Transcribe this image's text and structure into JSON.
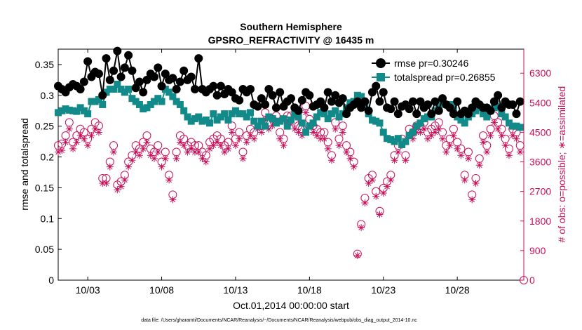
{
  "chart_data": {
    "type": "line",
    "title": "Southern Hemisphere",
    "subtitle": "GPSRO_REFRACTIVITY @ 16435 m",
    "xlabel": "Oct.01,2014 00:00:00 start",
    "ylabel": "rmse and totalspread",
    "y2label": "# of obs: o=possible; ∗=assimilated",
    "footnote": "data file: /Users/gharamti/Documents/NCAR/Reanalysis/~/Documents/NCAR/Reanalysis/webpub/obs_diag_output_2014-10.nc",
    "xlim": [
      1,
      32.5
    ],
    "ylim": [
      0,
      0.375
    ],
    "y2lim": [
      0,
      7031.25
    ],
    "x_ticks": [
      3,
      8,
      13,
      18,
      23,
      28
    ],
    "x_tick_labels": [
      "10/03",
      "10/08",
      "10/13",
      "10/18",
      "10/23",
      "10/28"
    ],
    "y_ticks": [
      0,
      0.05,
      0.1,
      0.15,
      0.2,
      0.25,
      0.3,
      0.35
    ],
    "y_tick_labels": [
      "0",
      "0.05",
      "0.1",
      "0.15",
      "0.2",
      "0.25",
      "0.3",
      "0.35"
    ],
    "y2_ticks": [
      0,
      900,
      1800,
      2700,
      3600,
      4500,
      5400,
      6300
    ],
    "y2_tick_labels": [
      "0",
      "900",
      "1800",
      "2700",
      "3600",
      "4500",
      "5400",
      "6300"
    ],
    "legend": {
      "location": "top-right",
      "entries": [
        "rmse pr=0.30246",
        "totalspread pr=0.26855"
      ]
    },
    "colors": {
      "rmse": "#000000",
      "spread": "#138a8a",
      "obs": "#c8105a"
    },
    "series": [
      {
        "name": "rmse pr=0.30246",
        "x": [
          1.0,
          1.25,
          1.5,
          1.75,
          2.0,
          2.25,
          2.5,
          2.75,
          3.0,
          3.25,
          3.5,
          3.75,
          4.0,
          4.25,
          4.5,
          4.75,
          5.0,
          5.25,
          5.5,
          5.75,
          6.0,
          6.25,
          6.5,
          6.75,
          7.0,
          7.25,
          7.5,
          7.75,
          8.0,
          8.25,
          8.5,
          8.75,
          9.0,
          9.25,
          9.5,
          9.75,
          10.0,
          10.25,
          10.5,
          10.75,
          11.0,
          11.25,
          11.5,
          11.75,
          12.0,
          12.25,
          12.5,
          12.75,
          13.0,
          13.25,
          13.5,
          13.75,
          14.0,
          14.25,
          14.5,
          14.75,
          15.0,
          15.25,
          15.5,
          15.75,
          16.0,
          16.25,
          16.5,
          16.75,
          17.0,
          17.25,
          17.5,
          17.75,
          18.0,
          18.25,
          18.5,
          18.75,
          19.0,
          19.25,
          19.5,
          19.75,
          20.0,
          20.25,
          20.5,
          20.75,
          21.0,
          21.25,
          21.5,
          21.75,
          22.0,
          22.25,
          22.5,
          22.75,
          23.0,
          23.25,
          23.5,
          23.75,
          24.0,
          24.25,
          24.5,
          24.75,
          25.0,
          25.25,
          25.5,
          25.75,
          26.0,
          26.25,
          26.5,
          26.75,
          27.0,
          27.25,
          27.5,
          27.75,
          28.0,
          28.25,
          28.5,
          28.75,
          29.0,
          29.25,
          29.5,
          29.75,
          30.0,
          30.25,
          30.5,
          30.75,
          31.0,
          31.25,
          31.5,
          31.75,
          32.0,
          32.25
        ],
        "values": [
          0.315,
          0.31,
          0.305,
          0.313,
          0.318,
          0.315,
          0.31,
          0.322,
          0.355,
          0.33,
          0.338,
          0.335,
          0.3,
          0.36,
          0.325,
          0.34,
          0.372,
          0.33,
          0.345,
          0.365,
          0.34,
          0.312,
          0.322,
          0.305,
          0.325,
          0.335,
          0.33,
          0.345,
          0.315,
          0.335,
          0.325,
          0.328,
          0.31,
          0.322,
          0.34,
          0.325,
          0.33,
          0.31,
          0.36,
          0.31,
          0.305,
          0.31,
          0.315,
          0.3,
          0.315,
          0.302,
          0.31,
          0.305,
          0.295,
          0.292,
          0.31,
          0.305,
          0.31,
          0.285,
          0.282,
          0.295,
          0.285,
          0.31,
          0.3,
          0.28,
          0.305,
          0.282,
          0.29,
          0.295,
          0.28,
          0.275,
          0.292,
          0.305,
          0.3,
          0.282,
          0.285,
          0.29,
          0.28,
          0.305,
          0.29,
          0.3,
          0.288,
          0.295,
          0.27,
          0.28,
          0.285,
          0.29,
          0.28,
          0.29,
          0.275,
          0.305,
          0.315,
          0.29,
          0.305,
          0.28,
          0.278,
          0.29,
          0.27,
          0.282,
          0.285,
          0.278,
          0.29,
          0.27,
          0.29,
          0.28,
          0.285,
          0.27,
          0.29,
          0.275,
          0.295,
          0.285,
          0.28,
          0.27,
          0.29,
          0.27,
          0.275,
          0.27,
          0.28,
          0.29,
          0.285,
          0.28,
          0.28,
          0.275,
          0.29,
          0.3,
          0.28,
          0.29,
          0.285,
          0.285,
          0.27,
          0.29
        ]
      },
      {
        "name": "totalspread pr=0.26855",
        "x": [
          1.0,
          1.25,
          1.5,
          1.75,
          2.0,
          2.25,
          2.5,
          2.75,
          3.0,
          3.25,
          3.5,
          3.75,
          4.0,
          4.25,
          4.5,
          4.75,
          5.0,
          5.25,
          5.5,
          5.75,
          6.0,
          6.25,
          6.5,
          6.75,
          7.0,
          7.25,
          7.5,
          7.75,
          8.0,
          8.25,
          8.5,
          8.75,
          9.0,
          9.25,
          9.5,
          9.75,
          10.0,
          10.25,
          10.5,
          10.75,
          11.0,
          11.25,
          11.5,
          11.75,
          12.0,
          12.25,
          12.5,
          12.75,
          13.0,
          13.25,
          13.5,
          13.75,
          14.0,
          14.25,
          14.5,
          14.75,
          15.0,
          15.25,
          15.5,
          15.75,
          16.0,
          16.25,
          16.5,
          16.75,
          17.0,
          17.25,
          17.5,
          17.75,
          18.0,
          18.25,
          18.5,
          18.75,
          19.0,
          19.25,
          19.5,
          19.75,
          20.0,
          20.25,
          20.5,
          20.75,
          21.0,
          21.25,
          21.5,
          21.75,
          22.0,
          22.25,
          22.5,
          22.75,
          23.0,
          23.25,
          23.5,
          23.75,
          24.0,
          24.25,
          24.5,
          24.75,
          25.0,
          25.25,
          25.5,
          25.75,
          26.0,
          26.25,
          26.5,
          26.75,
          27.0,
          27.25,
          27.5,
          27.75,
          28.0,
          28.25,
          28.5,
          28.75,
          29.0,
          29.25,
          29.5,
          29.75,
          30.0,
          30.25,
          30.5,
          30.75,
          31.0,
          31.25,
          31.5,
          31.75,
          32.0,
          32.25
        ],
        "values": [
          0.272,
          0.275,
          0.278,
          0.276,
          0.275,
          0.274,
          0.28,
          0.275,
          0.27,
          0.29,
          0.29,
          0.293,
          0.285,
          0.305,
          0.31,
          0.31,
          0.318,
          0.31,
          0.305,
          0.31,
          0.295,
          0.29,
          0.285,
          0.278,
          0.28,
          0.285,
          0.29,
          0.295,
          0.29,
          0.31,
          0.305,
          0.298,
          0.29,
          0.285,
          0.275,
          0.265,
          0.258,
          0.262,
          0.265,
          0.258,
          0.26,
          0.255,
          0.27,
          0.26,
          0.265,
          0.27,
          0.26,
          0.27,
          0.275,
          0.27,
          0.27,
          0.265,
          0.272,
          0.258,
          0.25,
          0.258,
          0.25,
          0.265,
          0.262,
          0.255,
          0.258,
          0.262,
          0.25,
          0.26,
          0.27,
          0.265,
          0.255,
          0.24,
          0.25,
          0.255,
          0.265,
          0.272,
          0.27,
          0.262,
          0.27,
          0.275,
          0.265,
          0.27,
          0.28,
          0.288,
          0.29,
          0.3,
          0.298,
          0.285,
          0.27,
          0.26,
          0.258,
          0.255,
          0.24,
          0.23,
          0.228,
          0.225,
          0.23,
          0.22,
          0.225,
          0.235,
          0.24,
          0.25,
          0.255,
          0.262,
          0.265,
          0.265,
          0.275,
          0.28,
          0.29,
          0.285,
          0.285,
          0.28,
          0.265,
          0.26,
          0.255,
          0.265,
          0.27,
          0.275,
          0.28,
          0.27,
          0.265,
          0.275,
          0.28,
          0.282,
          0.27,
          0.265,
          0.255,
          0.25,
          0.25,
          0.248
        ]
      },
      {
        "name": "# of obs possible",
        "axis": "right",
        "marker": "o",
        "x": [
          1.0,
          1.25,
          1.5,
          1.75,
          2.0,
          2.25,
          2.5,
          2.75,
          3.0,
          3.25,
          3.5,
          3.75,
          4.0,
          4.25,
          4.5,
          4.75,
          5.0,
          5.25,
          5.5,
          5.75,
          6.0,
          6.25,
          6.5,
          6.75,
          7.0,
          7.25,
          7.5,
          7.75,
          8.0,
          8.25,
          8.5,
          8.75,
          9.0,
          9.25,
          9.5,
          9.75,
          10.0,
          10.25,
          10.5,
          10.75,
          11.0,
          11.25,
          11.5,
          11.75,
          12.0,
          12.25,
          12.5,
          12.75,
          13.0,
          13.25,
          13.5,
          13.75,
          14.0,
          14.25,
          14.5,
          14.75,
          15.0,
          15.25,
          15.5,
          15.75,
          16.0,
          16.25,
          16.5,
          16.75,
          17.0,
          17.25,
          17.5,
          17.75,
          18.0,
          18.25,
          18.5,
          18.75,
          19.0,
          19.25,
          19.5,
          19.75,
          20.0,
          20.25,
          20.5,
          20.75,
          21.0,
          21.25,
          21.5,
          21.75,
          22.0,
          22.25,
          22.5,
          22.75,
          23.0,
          23.25,
          23.5,
          23.75,
          24.0,
          24.25,
          24.5,
          24.75,
          25.0,
          25.25,
          25.5,
          25.75,
          26.0,
          26.25,
          26.5,
          26.75,
          27.0,
          27.25,
          27.5,
          27.75,
          28.0,
          28.25,
          28.5,
          28.75,
          29.0,
          29.25,
          29.5,
          29.75,
          30.0,
          30.25,
          30.5,
          30.75,
          31.0,
          31.25,
          31.5,
          31.75,
          32.0,
          32.25
        ],
        "values": [
          4100,
          4150,
          4400,
          4800,
          4200,
          4400,
          4600,
          4500,
          4300,
          4600,
          4800,
          4700,
          3100,
          3100,
          3600,
          4100,
          2900,
          3000,
          3200,
          3600,
          3800,
          4100,
          4000,
          4200,
          4400,
          4000,
          3900,
          4100,
          3600,
          3900,
          3200,
          2600,
          3900,
          4400,
          4300,
          4100,
          4200,
          4100,
          4100,
          3900,
          3800,
          4200,
          4300,
          4400,
          4300,
          4100,
          4200,
          4700,
          4300,
          4500,
          3900,
          4400,
          4600,
          4500,
          4800,
          4700,
          5100,
          4800,
          4900,
          5000,
          4500,
          4300,
          5000,
          5000,
          4800,
          4700,
          4600,
          5300,
          4900,
          4700,
          4600,
          4500,
          4500,
          4200,
          3800,
          4800,
          4300,
          4700,
          4100,
          3900,
          3600,
          800,
          1700,
          2500,
          3100,
          3200,
          2700,
          2100,
          2800,
          3000,
          3200,
          3800,
          4100,
          4300,
          3800,
          4600,
          4500,
          4700,
          4700,
          4800,
          4500,
          4600,
          4700,
          4800,
          4500,
          4100,
          4300,
          4600,
          4200,
          4000,
          3200,
          3900,
          2600,
          3100,
          3700,
          4400,
          4100,
          4600,
          5000,
          4800,
          4600,
          4300,
          4000,
          4600,
          4500,
          4100
        ]
      },
      {
        "name": "# of obs assimilated",
        "axis": "right",
        "marker": "*",
        "x": [
          1.0,
          1.25,
          1.5,
          1.75,
          2.0,
          2.25,
          2.5,
          2.75,
          3.0,
          3.25,
          3.5,
          3.75,
          4.0,
          4.25,
          4.5,
          4.75,
          5.0,
          5.25,
          5.5,
          5.75,
          6.0,
          6.25,
          6.5,
          6.75,
          7.0,
          7.25,
          7.5,
          7.75,
          8.0,
          8.25,
          8.5,
          8.75,
          9.0,
          9.25,
          9.5,
          9.75,
          10.0,
          10.25,
          10.5,
          10.75,
          11.0,
          11.25,
          11.5,
          11.75,
          12.0,
          12.25,
          12.5,
          12.75,
          13.0,
          13.25,
          13.5,
          13.75,
          14.0,
          14.25,
          14.5,
          14.75,
          15.0,
          15.25,
          15.5,
          15.75,
          16.0,
          16.25,
          16.5,
          16.75,
          17.0,
          17.25,
          17.5,
          17.75,
          18.0,
          18.25,
          18.5,
          18.75,
          19.0,
          19.25,
          19.5,
          19.75,
          20.0,
          20.25,
          20.5,
          20.75,
          21.0,
          21.25,
          21.5,
          21.75,
          22.0,
          22.25,
          22.5,
          22.75,
          23.0,
          23.25,
          23.5,
          23.75,
          24.0,
          24.25,
          24.5,
          24.75,
          25.0,
          25.25,
          25.5,
          25.75,
          26.0,
          26.25,
          26.5,
          26.75,
          27.0,
          27.25,
          27.5,
          27.75,
          28.0,
          28.25,
          28.5,
          28.75,
          29.0,
          29.25,
          29.5,
          29.75,
          30.0,
          30.25,
          30.5,
          30.75,
          31.0,
          31.25,
          31.5,
          31.75,
          32.0,
          32.25
        ],
        "values": [
          3900,
          3950,
          4200,
          4600,
          4000,
          4200,
          4400,
          4300,
          4100,
          4400,
          4600,
          4500,
          2950,
          2950,
          3450,
          3900,
          2750,
          2850,
          3050,
          3450,
          3650,
          3900,
          3800,
          4000,
          4200,
          3800,
          3700,
          3900,
          3450,
          3700,
          3050,
          2450,
          3700,
          4200,
          4100,
          3900,
          4000,
          3900,
          3900,
          3700,
          3600,
          4000,
          4100,
          4200,
          4100,
          3900,
          4000,
          4500,
          4100,
          4300,
          3700,
          4200,
          4400,
          4300,
          4600,
          4500,
          4900,
          4600,
          4700,
          4800,
          4300,
          4100,
          4800,
          4800,
          4600,
          4500,
          4400,
          5100,
          4700,
          4500,
          4400,
          4300,
          4300,
          4000,
          3650,
          4600,
          4100,
          4500,
          3900,
          3700,
          3450,
          750,
          1600,
          2350,
          2950,
          3050,
          2550,
          2000,
          2650,
          2850,
          3050,
          3650,
          3900,
          4100,
          3650,
          4400,
          4300,
          4500,
          4500,
          4600,
          4300,
          4400,
          4500,
          4600,
          4300,
          3900,
          4100,
          4400,
          4000,
          3800,
          3050,
          3700,
          2450,
          2950,
          3500,
          4200,
          3900,
          4400,
          4800,
          4600,
          4400,
          4100,
          3800,
          4400,
          4300,
          3900
        ]
      }
    ]
  }
}
